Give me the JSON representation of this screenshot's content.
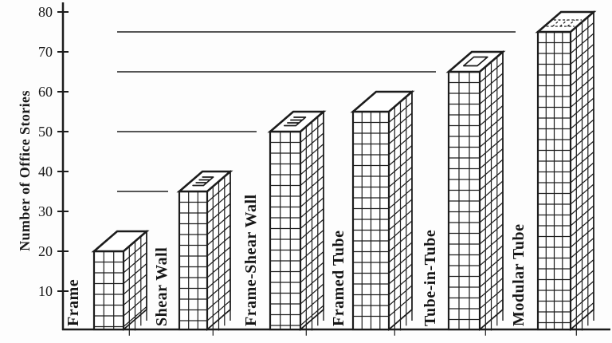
{
  "chart_data": {
    "type": "bar",
    "title": "",
    "ylabel": "Number of Office Stories",
    "xlabel": "",
    "ylim": [
      0,
      85
    ],
    "y_ticks": [
      10,
      20,
      30,
      40,
      50,
      60,
      70,
      80
    ],
    "grid": false,
    "legend": "none",
    "style": "3D building pictograph bars, black line art on white scanned paper",
    "categories": [
      "Frame",
      "Shear Wall",
      "Frame-Shear Wall",
      "Framed Tube",
      "Tube-in-Tube",
      "Modular Tube"
    ],
    "values": [
      20,
      35,
      50,
      55,
      65,
      75
    ],
    "roof_top_values": [
      25,
      40,
      55,
      60,
      70,
      80
    ],
    "reference_lines": [
      {
        "value": 35,
        "to_category": "Shear Wall"
      },
      {
        "value": 50,
        "to_category": "Frame-Shear Wall"
      },
      {
        "value": 65,
        "to_category": "Tube-in-Tube"
      },
      {
        "value": 75,
        "to_category": "Modular Tube"
      }
    ],
    "roof_marks": [
      "none",
      "core-walls",
      "core-walls",
      "none",
      "inner-tube",
      "modules"
    ],
    "colors": {
      "line": "#1c1c1c",
      "background": "#fdfdfd",
      "reference_line": "#3d3d3d",
      "text": "#1b1b1b"
    }
  }
}
